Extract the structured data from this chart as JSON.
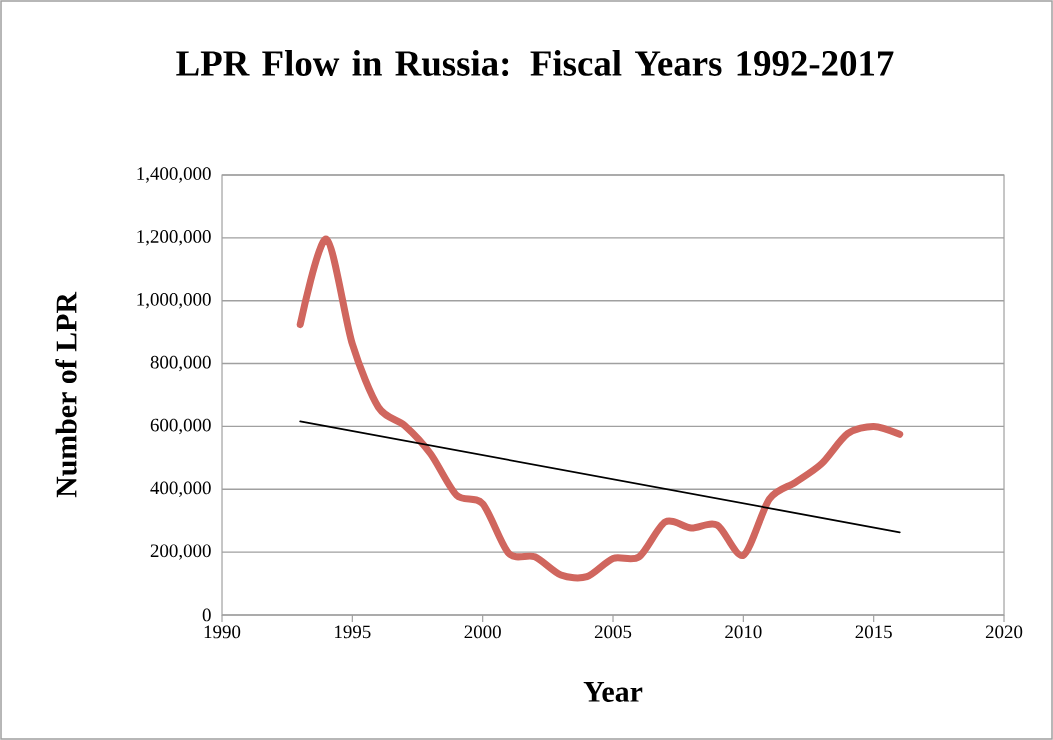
{
  "chart_data": {
    "type": "line",
    "title": "LPR Flow in Russia: Fiscal Years 1992-2017",
    "xlabel": "Year",
    "ylabel": "Number of LPR",
    "xlim": [
      1990,
      2020
    ],
    "xticks": [
      1990,
      1995,
      2000,
      2005,
      2010,
      2015,
      2020
    ],
    "ylim": [
      0,
      1400000
    ],
    "yticks": [
      0,
      {
        "value": 200000,
        "label": "200,000"
      },
      {
        "value": 400000,
        "label": "400,000"
      },
      {
        "value": 600000,
        "label": "600,000"
      },
      {
        "value": 800000,
        "label": "800,000"
      },
      {
        "value": 1000000,
        "label": "1,000,000"
      },
      {
        "value": 1200000,
        "label": "1,200,000"
      },
      {
        "value": 1400000,
        "label": "1,400,000"
      }
    ],
    "grid": "y",
    "marker": "none",
    "series": [
      {
        "color": "#d0665e",
        "x": [
          1993,
          1994,
          1995,
          1996,
          1997,
          1998,
          1999,
          2000,
          2001,
          2002,
          2003,
          2004,
          2005,
          2006,
          2007,
          2008,
          2009,
          2010,
          2011,
          2012,
          2013,
          2014,
          2015,
          2016
        ],
        "values": [
          924000,
          1196000,
          862000,
          661000,
          603000,
          513000,
          381000,
          354000,
          196000,
          185000,
          127000,
          122000,
          180000,
          185000,
          296000,
          277000,
          286000,
          190000,
          369000,
          422000,
          481000,
          577000,
          600000,
          575000
        ]
      },
      {
        "type": "line",
        "color": "#000000",
        "x": [
          1993,
          2016
        ],
        "values": [
          616000,
          263000
        ]
      }
    ]
  }
}
